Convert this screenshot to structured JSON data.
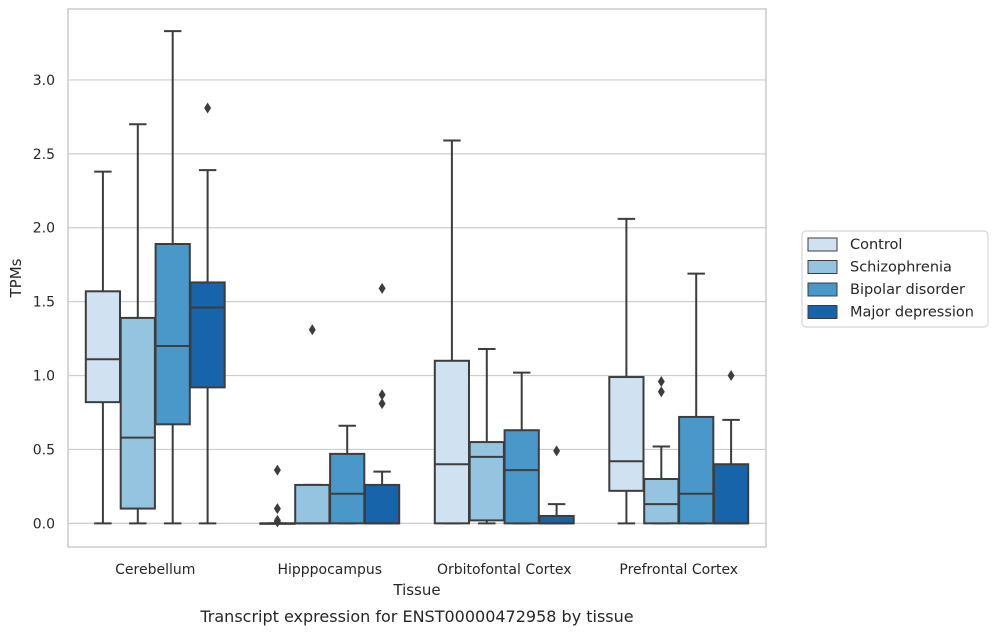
{
  "chart_data": {
    "type": "box",
    "title": "",
    "caption": "Transcript expression for ENST00000472958 by tissue",
    "xlabel": "Tissue",
    "ylabel": "TPMs",
    "ylim": [
      -0.16,
      3.48
    ],
    "yticks": [
      0.0,
      0.5,
      1.0,
      1.5,
      2.0,
      2.5,
      3.0
    ],
    "ytick_labels": [
      "0.0",
      "0.5",
      "1.0",
      "1.5",
      "2.0",
      "2.5",
      "3.0"
    ],
    "grid": "horizontal",
    "legend_position": "right",
    "categories": [
      "Cerebellum",
      "Hipppocampus",
      "Orbitofontal Cortex",
      "Prefrontal Cortex"
    ],
    "series": [
      {
        "name": "Control",
        "color": "#d0e1f2",
        "boxes": [
          {
            "whislo": 0.0,
            "q1": 0.82,
            "med": 1.11,
            "q3": 1.57,
            "whishi": 2.38,
            "fliers": []
          },
          {
            "whislo": 0.0,
            "q1": 0.0,
            "med": 0.0,
            "q3": 0.0,
            "whishi": 0.0,
            "fliers": [
              0.01,
              0.02,
              0.1,
              0.36
            ]
          },
          {
            "whislo": 0.0,
            "q1": 0.0,
            "med": 0.4,
            "q3": 1.1,
            "whishi": 2.59,
            "fliers": []
          },
          {
            "whislo": 0.0,
            "q1": 0.22,
            "med": 0.42,
            "q3": 0.99,
            "whishi": 2.06,
            "fliers": []
          }
        ]
      },
      {
        "name": "Schizophrenia",
        "color": "#94c4df",
        "boxes": [
          {
            "whislo": 0.0,
            "q1": 0.1,
            "med": 0.58,
            "q3": 1.39,
            "whishi": 2.7,
            "fliers": []
          },
          {
            "whislo": 0.0,
            "q1": 0.0,
            "med": 0.0,
            "q3": 0.26,
            "whishi": 0.26,
            "fliers": [
              1.31
            ]
          },
          {
            "whislo": 0.0,
            "q1": 0.02,
            "med": 0.45,
            "q3": 0.55,
            "whishi": 1.18,
            "fliers": []
          },
          {
            "whislo": 0.0,
            "q1": 0.0,
            "med": 0.13,
            "q3": 0.3,
            "whishi": 0.52,
            "fliers": [
              0.89,
              0.96
            ]
          }
        ]
      },
      {
        "name": "Bipolar disorder",
        "color": "#4a98c9",
        "boxes": [
          {
            "whislo": 0.0,
            "q1": 0.67,
            "med": 1.2,
            "q3": 1.89,
            "whishi": 3.33,
            "fliers": []
          },
          {
            "whislo": 0.0,
            "q1": 0.0,
            "med": 0.2,
            "q3": 0.47,
            "whishi": 0.66,
            "fliers": []
          },
          {
            "whislo": 0.0,
            "q1": 0.0,
            "med": 0.36,
            "q3": 0.63,
            "whishi": 1.02,
            "fliers": []
          },
          {
            "whislo": 0.0,
            "q1": 0.0,
            "med": 0.2,
            "q3": 0.72,
            "whishi": 1.69,
            "fliers": []
          }
        ]
      },
      {
        "name": "Major depression",
        "color": "#1764ab",
        "boxes": [
          {
            "whislo": 0.0,
            "q1": 0.92,
            "med": 1.46,
            "q3": 1.63,
            "whishi": 2.39,
            "fliers": [
              2.81
            ]
          },
          {
            "whislo": 0.0,
            "q1": 0.0,
            "med": 0.0,
            "q3": 0.26,
            "whishi": 0.35,
            "fliers": [
              0.81,
              0.87,
              1.59
            ]
          },
          {
            "whislo": 0.0,
            "q1": 0.0,
            "med": 0.0,
            "q3": 0.05,
            "whishi": 0.13,
            "fliers": [
              0.49
            ]
          },
          {
            "whislo": 0.0,
            "q1": 0.0,
            "med": 0.0,
            "q3": 0.4,
            "whishi": 0.7,
            "fliers": [
              1.0
            ]
          }
        ]
      }
    ]
  }
}
